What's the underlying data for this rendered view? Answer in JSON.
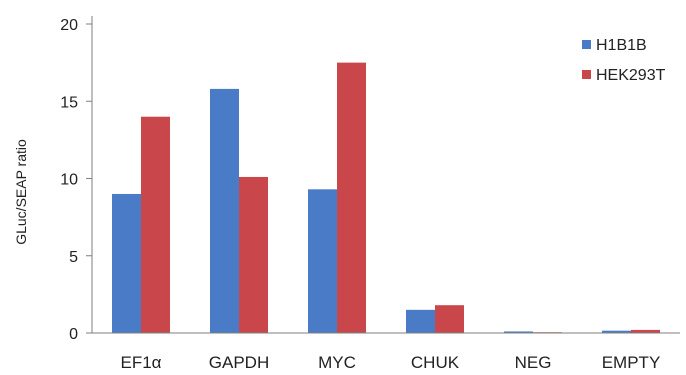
{
  "chart_data": {
    "type": "bar",
    "categories": [
      "EF1α",
      "GAPDH",
      "MYC",
      "CHUK",
      "NEG",
      "EMPTY"
    ],
    "series": [
      {
        "name": "H1B1B",
        "color": "#4a7bc6",
        "values": [
          9.0,
          15.8,
          9.3,
          1.5,
          0.1,
          0.15
        ]
      },
      {
        "name": "HEK293T",
        "color": "#c9474b",
        "values": [
          14.0,
          10.1,
          17.5,
          1.8,
          0.05,
          0.2
        ]
      }
    ],
    "ylabel": "GLuc/SEAP ratio",
    "xlabel": "",
    "ylim": [
      0,
      20
    ],
    "yticks": [
      0,
      5,
      10,
      15,
      20
    ],
    "grid": false,
    "legend_position": "top-right"
  }
}
